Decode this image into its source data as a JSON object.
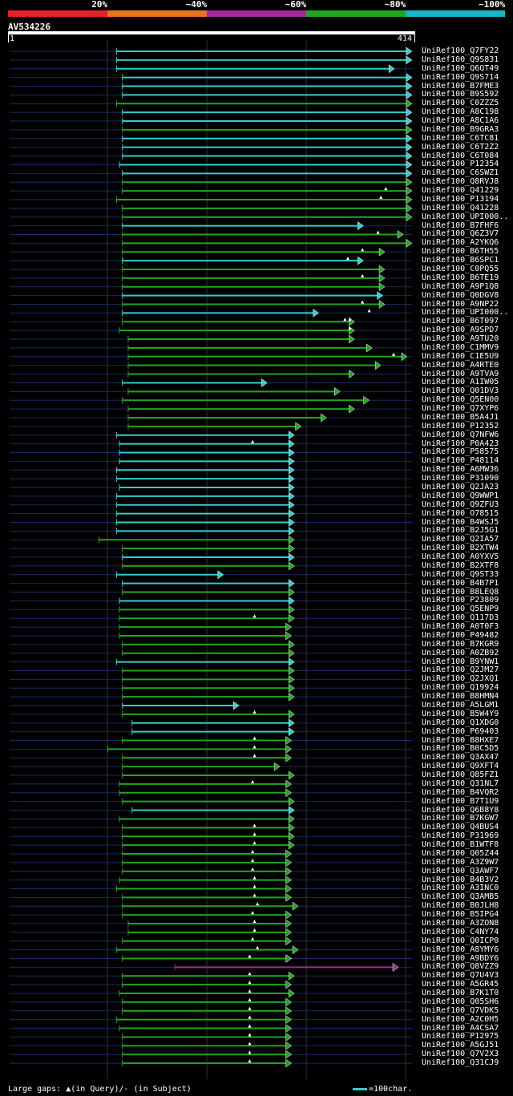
{
  "legend": {
    "labels": [
      "20%",
      "~40%",
      "~60%",
      "~80%",
      "~100%"
    ],
    "colors": [
      "#e8202a",
      "#e8741a",
      "#a0289a",
      "#22a522",
      "#14b8c4"
    ]
  },
  "query": {
    "id": "AV534226",
    "start": "1",
    "end": "414",
    "length": 414
  },
  "footer": {
    "text": "Large gaps: ▲(in Query)/- (in Subject)",
    "scale": "=100char."
  },
  "hits": [
    {
      "name": "UniRef100_Q7FY22",
      "s": 110,
      "e": 414,
      "c": "cyan",
      "g": [],
      "m": []
    },
    {
      "name": "UniRef100_Q9S831",
      "s": 110,
      "e": 414,
      "c": "cyan",
      "g": [],
      "m": []
    },
    {
      "name": "UniRef100_Q6QT49",
      "s": 110,
      "e": 396,
      "c": "cyan",
      "g": [],
      "m": []
    },
    {
      "name": "UniRef100_Q9S714",
      "s": 116,
      "e": 414,
      "c": "cyan",
      "g": [],
      "m": []
    },
    {
      "name": "UniRef100_B7FME3",
      "s": 116,
      "e": 414,
      "c": "cyan",
      "g": [],
      "m": []
    },
    {
      "name": "UniRef100_B9S592",
      "s": 116,
      "e": 414,
      "c": "cyan",
      "g": [],
      "m": []
    },
    {
      "name": "UniRef100_C0ZZZ5",
      "s": 110,
      "e": 414,
      "c": "green",
      "g": [],
      "m": []
    },
    {
      "name": "UniRef100_A8C198",
      "s": 116,
      "e": 414,
      "c": "cyan",
      "g": [],
      "m": []
    },
    {
      "name": "UniRef100_A8C1A6",
      "s": 116,
      "e": 414,
      "c": "cyan",
      "g": [],
      "m": []
    },
    {
      "name": "UniRef100_B9GRA3",
      "s": 116,
      "e": 414,
      "c": "green",
      "g": [],
      "m": []
    },
    {
      "name": "UniRef100_C6TC81",
      "s": 116,
      "e": 414,
      "c": "cyan",
      "g": [],
      "m": []
    },
    {
      "name": "UniRef100_C6T2Z2",
      "s": 116,
      "e": 414,
      "c": "cyan",
      "g": [],
      "m": []
    },
    {
      "name": "UniRef100_C6T084",
      "s": 116,
      "e": 414,
      "c": "cyan",
      "g": [],
      "m": []
    },
    {
      "name": "UniRef100_P12354",
      "s": 113,
      "e": 414,
      "c": "cyan",
      "g": [],
      "m": []
    },
    {
      "name": "UniRef100_C6SWZ1",
      "s": 116,
      "e": 414,
      "c": "cyan",
      "g": [],
      "m": []
    },
    {
      "name": "UniRef100_Q8RVJ8",
      "s": 116,
      "e": 414,
      "c": "green",
      "g": [],
      "m": []
    },
    {
      "name": "UniRef100_Q41229",
      "s": 116,
      "e": 414,
      "c": "green",
      "g": [],
      "m": [
        387
      ]
    },
    {
      "name": "UniRef100_P13194",
      "s": 110,
      "e": 414,
      "c": "green",
      "g": [],
      "m": [
        382
      ]
    },
    {
      "name": "UniRef100_Q41228",
      "s": 116,
      "e": 414,
      "c": "green",
      "g": [],
      "m": []
    },
    {
      "name": "UniRef100_UPI000..",
      "s": 116,
      "e": 414,
      "c": "green",
      "g": [],
      "m": []
    },
    {
      "name": "UniRef100_B7FHF6",
      "s": 116,
      "e": 364,
      "c": "cyan",
      "g": [],
      "m": []
    },
    {
      "name": "UniRef100_Q6Z3V7",
      "s": 116,
      "e": 405,
      "c": "green",
      "g": [],
      "m": [
        379
      ]
    },
    {
      "name": "UniRef100_A2YKQ6",
      "s": 116,
      "e": 414,
      "c": "green",
      "g": [],
      "m": []
    },
    {
      "name": "UniRef100_B6TH55",
      "s": 116,
      "e": 386,
      "c": "green",
      "g": [],
      "m": [
        363
      ]
    },
    {
      "name": "UniRef100_B6SPC1",
      "s": 116,
      "e": 364,
      "c": "cyan",
      "g": [],
      "m": [
        348
      ]
    },
    {
      "name": "UniRef100_C0PQ55",
      "s": 116,
      "e": 386,
      "c": "green",
      "g": [],
      "m": []
    },
    {
      "name": "UniRef100_B6TE19",
      "s": 116,
      "e": 386,
      "c": "green",
      "g": [],
      "m": [
        363
      ]
    },
    {
      "name": "UniRef100_A9P1Q8",
      "s": 116,
      "e": 386,
      "c": "green",
      "g": [],
      "m": []
    },
    {
      "name": "UniRef100_Q0DGV8",
      "s": 116,
      "e": 384,
      "c": "cyan",
      "g": [],
      "m": []
    },
    {
      "name": "UniRef100_A9NP22",
      "s": 116,
      "e": 386,
      "c": "green",
      "g": [],
      "m": [
        363
      ]
    },
    {
      "name": "UniRef100_UPI000..",
      "s": 116,
      "e": 318,
      "c": "cyan",
      "g": [],
      "m": [
        370
      ]
    },
    {
      "name": "UniRef100_B6T097",
      "s": 116,
      "e": 355,
      "c": "green",
      "g": [],
      "m": [
        345,
        350
      ]
    },
    {
      "name": "UniRef100_A9SPD7",
      "s": 113,
      "e": 355,
      "c": "green",
      "g": [],
      "m": [
        350
      ]
    },
    {
      "name": "UniRef100_A9TU20",
      "s": 122,
      "e": 355,
      "c": "green",
      "g": [],
      "m": []
    },
    {
      "name": "UniRef100_C1MMV9",
      "s": 122,
      "e": 373,
      "c": "green",
      "g": [],
      "m": []
    },
    {
      "name": "UniRef100_C1E5U9",
      "s": 122,
      "e": 409,
      "c": "green",
      "g": [],
      "m": [
        395
      ]
    },
    {
      "name": "UniRef100_A4RTE0",
      "s": 122,
      "e": 382,
      "c": "green",
      "g": [],
      "m": []
    },
    {
      "name": "UniRef100_A9TVA9",
      "s": 122,
      "e": 355,
      "c": "green",
      "g": [],
      "m": []
    },
    {
      "name": "UniRef100_A1IW05",
      "s": 116,
      "e": 265,
      "c": "cyan",
      "g": [],
      "m": []
    },
    {
      "name": "UniRef100_Q01DV3",
      "s": 122,
      "e": 340,
      "c": "green",
      "g": [],
      "m": []
    },
    {
      "name": "UniRef100_Q5EN00",
      "s": 116,
      "e": 370,
      "c": "green",
      "g": [],
      "m": []
    },
    {
      "name": "UniRef100_Q7XYP6",
      "s": 122,
      "e": 355,
      "c": "green",
      "g": [],
      "m": []
    },
    {
      "name": "UniRef100_B5A4J1",
      "s": 122,
      "e": 326,
      "c": "green",
      "g": [],
      "m": []
    },
    {
      "name": "UniRef100_P12352",
      "s": 122,
      "e": 300,
      "c": "green",
      "g": [],
      "m": []
    },
    {
      "name": "UniRef100_Q7NFW6",
      "s": 110,
      "e": 293,
      "c": "cyan",
      "g": [],
      "m": []
    },
    {
      "name": "UniRef100_P0A423",
      "s": 113,
      "e": 293,
      "c": "cyan",
      "g": [],
      "m": [
        250
      ]
    },
    {
      "name": "UniRef100_P58575",
      "s": 113,
      "e": 293,
      "c": "cyan",
      "g": [],
      "m": []
    },
    {
      "name": "UniRef100_P48114",
      "s": 113,
      "e": 293,
      "c": "cyan",
      "g": [],
      "m": []
    },
    {
      "name": "UniRef100_A6MW36",
      "s": 110,
      "e": 293,
      "c": "cyan",
      "g": [],
      "m": []
    },
    {
      "name": "UniRef100_P31090",
      "s": 110,
      "e": 293,
      "c": "cyan",
      "g": [],
      "m": []
    },
    {
      "name": "UniRef100_Q2JA23",
      "s": 113,
      "e": 293,
      "c": "cyan",
      "g": [],
      "m": []
    },
    {
      "name": "UniRef100_Q9WWP1",
      "s": 110,
      "e": 293,
      "c": "cyan",
      "g": [],
      "m": []
    },
    {
      "name": "UniRef100_Q9ZFU3",
      "s": 110,
      "e": 293,
      "c": "cyan",
      "g": [],
      "m": []
    },
    {
      "name": "UniRef100_O78515",
      "s": 110,
      "e": 293,
      "c": "cyan",
      "g": [],
      "m": []
    },
    {
      "name": "UniRef100_B4WSJ5",
      "s": 110,
      "e": 293,
      "c": "cyan",
      "g": [],
      "m": []
    },
    {
      "name": "UniRef100_B2J5G1",
      "s": 110,
      "e": 293,
      "c": "cyan",
      "g": [],
      "m": []
    },
    {
      "name": "UniRef100_Q2IA57",
      "s": 92,
      "e": 293,
      "c": "green",
      "g": [],
      "m": []
    },
    {
      "name": "UniRef100_B2XTW4",
      "s": 116,
      "e": 293,
      "c": "green",
      "g": [],
      "m": []
    },
    {
      "name": "UniRef100_A0YXV5",
      "s": 116,
      "e": 293,
      "c": "cyan",
      "g": [],
      "m": []
    },
    {
      "name": "UniRef100_B2XTF8",
      "s": 116,
      "e": 293,
      "c": "green",
      "g": [],
      "m": []
    },
    {
      "name": "UniRef100_Q9ST33",
      "s": 110,
      "e": 220,
      "c": "cyan",
      "g": [],
      "m": []
    },
    {
      "name": "UniRef100_B4B7P1",
      "s": 116,
      "e": 293,
      "c": "cyan",
      "g": [],
      "m": []
    },
    {
      "name": "UniRef100_B8LEQ8",
      "s": 116,
      "e": 293,
      "c": "green",
      "g": [],
      "m": []
    },
    {
      "name": "UniRef100_P23809",
      "s": 113,
      "e": 293,
      "c": "cyan",
      "g": [],
      "m": []
    },
    {
      "name": "UniRef100_Q5ENP9",
      "s": 113,
      "e": 293,
      "c": "green",
      "g": [],
      "m": []
    },
    {
      "name": "UniRef100_Q117D3",
      "s": 113,
      "e": 293,
      "c": "green",
      "g": [],
      "m": [
        252
      ]
    },
    {
      "name": "UniRef100_A0T0F3",
      "s": 113,
      "e": 290,
      "c": "green",
      "g": [],
      "m": []
    },
    {
      "name": "UniRef100_P49482",
      "s": 113,
      "e": 290,
      "c": "green",
      "g": [],
      "m": []
    },
    {
      "name": "UniRef100_B7KGR9",
      "s": 116,
      "e": 293,
      "c": "green",
      "g": [],
      "m": []
    },
    {
      "name": "UniRef100_A0ZB92",
      "s": 116,
      "e": 293,
      "c": "green",
      "g": [],
      "m": []
    },
    {
      "name": "UniRef100_B9YNW1",
      "s": 110,
      "e": 293,
      "c": "cyan",
      "g": [],
      "m": []
    },
    {
      "name": "UniRef100_Q2JM27",
      "s": 116,
      "e": 293,
      "c": "green",
      "g": [],
      "m": []
    },
    {
      "name": "UniRef100_Q2JXQ1",
      "s": 116,
      "e": 293,
      "c": "green",
      "g": [],
      "m": []
    },
    {
      "name": "UniRef100_Q19924",
      "s": 116,
      "e": 293,
      "c": "green",
      "g": [],
      "m": []
    },
    {
      "name": "UniRef100_B8HMN4",
      "s": 116,
      "e": 293,
      "c": "green",
      "g": [],
      "m": []
    },
    {
      "name": "UniRef100_A5LGM1",
      "s": 116,
      "e": 236,
      "c": "cyan",
      "g": [],
      "m": []
    },
    {
      "name": "UniRef100_B5W4Y9",
      "s": 116,
      "e": 293,
      "c": "green",
      "g": [],
      "m": [
        252
      ]
    },
    {
      "name": "UniRef100_Q1XDG0",
      "s": 126,
      "e": 293,
      "c": "cyan",
      "g": [],
      "m": []
    },
    {
      "name": "UniRef100_P69403",
      "s": 126,
      "e": 293,
      "c": "cyan",
      "g": [],
      "m": []
    },
    {
      "name": "UniRef100_B8HXE7",
      "s": 116,
      "e": 290,
      "c": "green",
      "g": [],
      "m": [
        252
      ]
    },
    {
      "name": "UniRef100_B0C5D5",
      "s": 101,
      "e": 290,
      "c": "green",
      "g": [],
      "m": [
        252
      ]
    },
    {
      "name": "UniRef100_Q3AX47",
      "s": 116,
      "e": 290,
      "c": "green",
      "g": [],
      "m": [
        252
      ]
    },
    {
      "name": "UniRef100_Q9XFT4",
      "s": 116,
      "e": 278,
      "c": "green",
      "g": [],
      "m": []
    },
    {
      "name": "UniRef100_Q85FZ1",
      "s": 116,
      "e": 293,
      "c": "green",
      "g": [],
      "m": []
    },
    {
      "name": "UniRef100_Q31NL7",
      "s": 113,
      "e": 290,
      "c": "green",
      "g": [],
      "m": [
        250
      ]
    },
    {
      "name": "UniRef100_B4VQR2",
      "s": 113,
      "e": 290,
      "c": "green",
      "g": [],
      "m": []
    },
    {
      "name": "UniRef100_B7T1U9",
      "s": 116,
      "e": 293,
      "c": "green",
      "g": [],
      "m": []
    },
    {
      "name": "UniRef100_Q6B8Y8",
      "s": 126,
      "e": 293,
      "c": "cyan",
      "g": [],
      "m": []
    },
    {
      "name": "UniRef100_B7KGW7",
      "s": 113,
      "e": 293,
      "c": "green",
      "g": [],
      "m": []
    },
    {
      "name": "UniRef100_Q4BUS4",
      "s": 116,
      "e": 293,
      "c": "green",
      "g": [],
      "m": [
        252
      ]
    },
    {
      "name": "UniRef100_P31969",
      "s": 116,
      "e": 293,
      "c": "green",
      "g": [],
      "m": [
        252
      ]
    },
    {
      "name": "UniRef100_B1WTF8",
      "s": 116,
      "e": 293,
      "c": "green",
      "g": [],
      "m": [
        252
      ]
    },
    {
      "name": "UniRef100_Q05Z44",
      "s": 116,
      "e": 290,
      "c": "green",
      "g": [],
      "m": [
        250
      ]
    },
    {
      "name": "UniRef100_A3Z9W7",
      "s": 116,
      "e": 290,
      "c": "green",
      "g": [],
      "m": [
        250
      ]
    },
    {
      "name": "UniRef100_Q3AWF7",
      "s": 116,
      "e": 290,
      "c": "green",
      "g": [],
      "m": [
        250
      ]
    },
    {
      "name": "UniRef100_B4B3V2",
      "s": 113,
      "e": 290,
      "c": "green",
      "g": [],
      "m": [
        252
      ]
    },
    {
      "name": "UniRef100_A3INC0",
      "s": 110,
      "e": 290,
      "c": "green",
      "g": [],
      "m": [
        252
      ]
    },
    {
      "name": "UniRef100_Q3AMB5",
      "s": 116,
      "e": 290,
      "c": "green",
      "g": [],
      "m": [
        252
      ]
    },
    {
      "name": "UniRef100_B0JLH8",
      "s": 116,
      "e": 297,
      "c": "green",
      "g": [],
      "m": [
        255
      ]
    },
    {
      "name": "UniRef100_B5IPG4",
      "s": 116,
      "e": 290,
      "c": "green",
      "g": [],
      "m": [
        250
      ]
    },
    {
      "name": "UniRef100_A3ZON8",
      "s": 122,
      "e": 290,
      "c": "green",
      "g": [],
      "m": [
        252
      ]
    },
    {
      "name": "UniRef100_C4NY74",
      "s": 122,
      "e": 290,
      "c": "green",
      "g": [],
      "m": [
        252
      ]
    },
    {
      "name": "UniRef100_Q0ICP0",
      "s": 116,
      "e": 290,
      "c": "green",
      "g": [],
      "m": [
        250
      ]
    },
    {
      "name": "UniRef100_A8YMY6",
      "s": 110,
      "e": 297,
      "c": "green",
      "g": [],
      "m": [
        255
      ]
    },
    {
      "name": "UniRef100_A9BDY6",
      "s": 116,
      "e": 290,
      "c": "green",
      "g": [],
      "m": [
        247
      ]
    },
    {
      "name": "UniRef100_Q8VZZ9",
      "s": 170,
      "e": 400,
      "c": "purple",
      "g": [],
      "m": []
    },
    {
      "name": "UniRef100_Q7U4V3",
      "s": 116,
      "e": 293,
      "c": "green",
      "g": [],
      "m": [
        247
      ]
    },
    {
      "name": "UniRef100_A5GR45",
      "s": 116,
      "e": 290,
      "c": "green",
      "g": [],
      "m": [
        247
      ]
    },
    {
      "name": "UniRef100_B7K1T0",
      "s": 113,
      "e": 293,
      "c": "green",
      "g": [],
      "m": [
        247
      ]
    },
    {
      "name": "UniRef100_Q05SH6",
      "s": 116,
      "e": 290,
      "c": "green",
      "g": [],
      "m": [
        247
      ]
    },
    {
      "name": "UniRef100_Q7VDK5",
      "s": 116,
      "e": 290,
      "c": "green",
      "g": [],
      "m": [
        247
      ]
    },
    {
      "name": "UniRef100_A2C0H5",
      "s": 110,
      "e": 290,
      "c": "green",
      "g": [],
      "m": [
        247
      ]
    },
    {
      "name": "UniRef100_A4CSA7",
      "s": 113,
      "e": 290,
      "c": "green",
      "g": [],
      "m": [
        247
      ]
    },
    {
      "name": "UniRef100_P12975",
      "s": 116,
      "e": 290,
      "c": "green",
      "g": [],
      "m": [
        247
      ]
    },
    {
      "name": "UniRef100_A5GJ51",
      "s": 116,
      "e": 290,
      "c": "green",
      "g": [],
      "m": [
        247
      ]
    },
    {
      "name": "UniRef100_Q7V2X3",
      "s": 116,
      "e": 290,
      "c": "green",
      "g": [],
      "m": [
        247
      ]
    },
    {
      "name": "UniRef100_Q31CJ9",
      "s": 116,
      "e": 290,
      "c": "green",
      "g": [],
      "m": [
        247
      ]
    }
  ]
}
